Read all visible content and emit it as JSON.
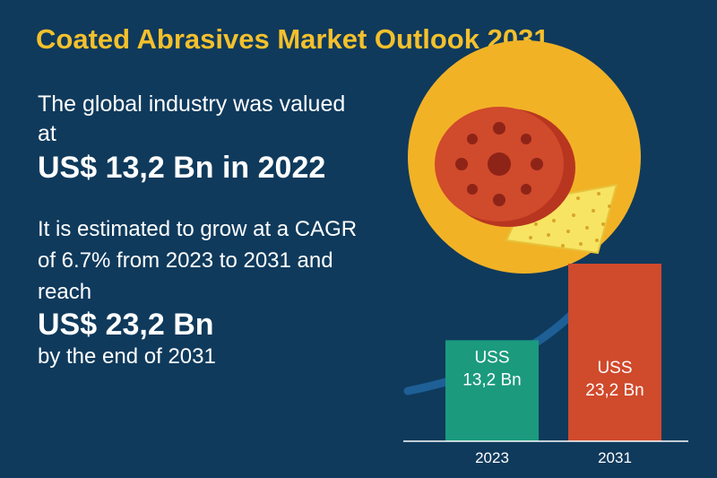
{
  "header": {
    "title": "Coated Abrasives Market Outlook 2031"
  },
  "text": {
    "intro": "The global industry was valued at",
    "value_2022": "US$ 13,2 Bn in 2022",
    "growth": "It is estimated to grow at a CAGR of 6.7% from 2023 to 2031 and reach",
    "value_2031": "US$ 23,2 Bn",
    "end": "by the end of 2031"
  },
  "colors": {
    "background": "#0f3a5c",
    "title": "#f5c02c",
    "bar_2023": "#1b9a7e",
    "bar_2031": "#d04a2c",
    "disc": "#d04a2c",
    "circle": "#f2b226",
    "sandpaper": "#f7e463",
    "arrow": "#1e5f96"
  },
  "icons": [
    "abrasive-disc-icon",
    "sandpaper-icon",
    "growth-arrow-icon"
  ],
  "chart_data": {
    "type": "bar",
    "categories": [
      "2023",
      "2031"
    ],
    "values": [
      13.2,
      23.2
    ],
    "value_labels": [
      [
        "USS",
        "13,2 Bn"
      ],
      [
        "USS",
        "23,2 Bn"
      ]
    ],
    "bar_colors": [
      "#1b9a7e",
      "#d04a2c"
    ],
    "ylim": [
      0,
      23.2
    ]
  }
}
